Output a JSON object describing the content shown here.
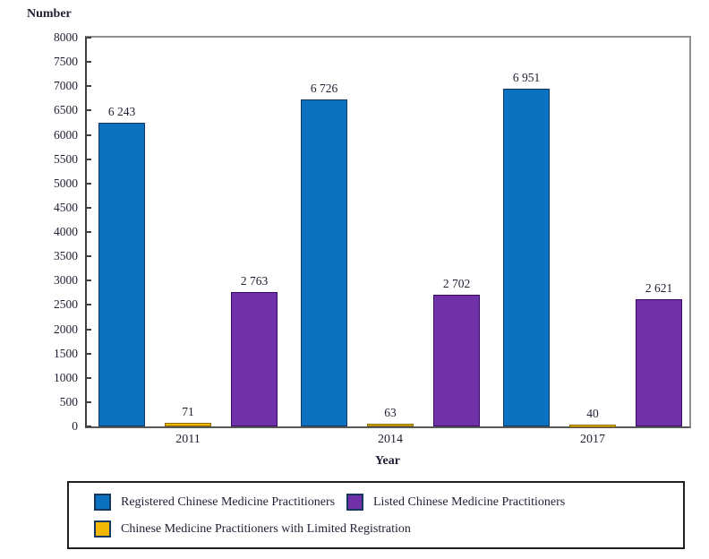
{
  "y_axis": {
    "title": "Number",
    "tick_labels": [
      "8000",
      "7500",
      "7000",
      "6500",
      "6000",
      "5500",
      "5000",
      "4500",
      "4000",
      "3500",
      "3000",
      "2500",
      "2000",
      "1500",
      "1000",
      "500",
      "0"
    ]
  },
  "x_axis": {
    "title": "Year"
  },
  "chart_data": {
    "type": "bar",
    "title": "",
    "xlabel": "Year",
    "ylabel": "Number",
    "categories": [
      "2011",
      "2014",
      "2017"
    ],
    "series": [
      {
        "name": "Registered Chinese Medicine Practitioners",
        "color": "#0b72c2",
        "border_color": "#16365d",
        "values": [
          6243,
          6726,
          6951
        ],
        "value_labels": [
          "6 243",
          "6 726",
          "6 951"
        ]
      },
      {
        "name": "Chinese Medicine Practitioners with Limited Registration",
        "color": "#f2b705",
        "border_color": "#8a6d00",
        "values": [
          71,
          63,
          40
        ],
        "value_labels": [
          "71",
          "63",
          "40"
        ]
      },
      {
        "name": "Listed Chinese Medicine Practitioners",
        "color": "#7030a8",
        "border_color": "#350c5e",
        "values": [
          2763,
          2702,
          2621
        ],
        "value_labels": [
          "2 763",
          "2 702",
          "2 621"
        ]
      }
    ],
    "ylim": [
      0,
      8000
    ],
    "ytick_step": 500,
    "grid": false,
    "legend_position": "bottom"
  },
  "legend": {
    "items": [
      {
        "label": "Registered Chinese Medicine Practitioners",
        "color": "#0b72c2"
      },
      {
        "label": "Listed Chinese Medicine Practitioners",
        "color": "#7030a8"
      },
      {
        "label": "Chinese Medicine Practitioners with Limited Registration",
        "color": "#f2b705"
      }
    ]
  }
}
